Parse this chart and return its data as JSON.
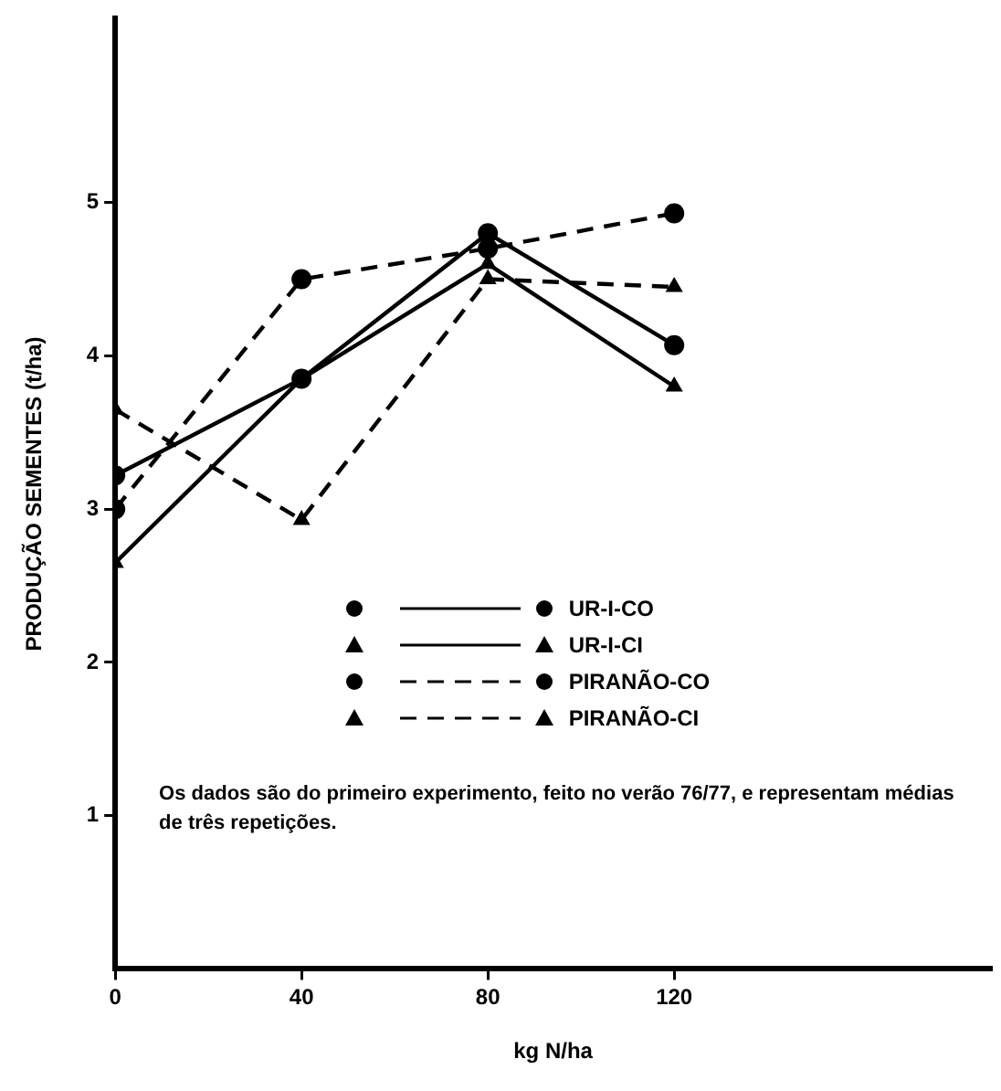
{
  "chart_data": {
    "type": "line",
    "xlabel": "kg N/ha",
    "ylabel": "PRODUÇÃO SEMENTES (t/ha)",
    "x": [
      0,
      40,
      80,
      120
    ],
    "xlim": [
      0,
      188
    ],
    "xticks": [
      0,
      40,
      80,
      120
    ],
    "ylim": [
      0,
      6.2
    ],
    "yticks": [
      1,
      2,
      3,
      4,
      5
    ],
    "series": [
      {
        "name": "UR-I-CO",
        "color": "#000000",
        "values": [
          3.22,
          3.85,
          4.8,
          4.07
        ],
        "marker": "circle",
        "line_style": "solid"
      },
      {
        "name": "UR-I-CI",
        "color": "#000000",
        "values": [
          2.65,
          3.85,
          4.6,
          3.8
        ],
        "marker": "triangle",
        "line_style": "solid"
      },
      {
        "name": "PIRANÃO-CO",
        "color": "#000000",
        "values": [
          3.0,
          4.5,
          4.7,
          4.93
        ],
        "marker": "circle",
        "line_style": "dashed"
      },
      {
        "name": "PIRANÃO-CI",
        "color": "#000000",
        "values": [
          3.65,
          2.93,
          4.5,
          4.45
        ],
        "marker": "triangle",
        "line_style": "dashed"
      }
    ],
    "legend": "right",
    "grid": false,
    "annotations": [
      "Os dados são do primeiro experimento, feito no verão 76/77, e representam médias de três repetições."
    ]
  }
}
